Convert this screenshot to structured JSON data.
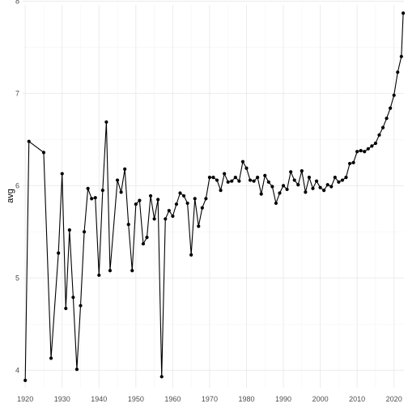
{
  "chart_data": {
    "type": "line",
    "title": "",
    "xlabel": "",
    "ylabel": "avg",
    "xlim": [
      1919.3,
      2022.7
    ],
    "ylim": [
      3.81,
      7.96
    ],
    "x_ticks": [
      1920,
      1930,
      1940,
      1950,
      1960,
      1970,
      1980,
      1990,
      2000,
      2010,
      2020
    ],
    "y_ticks": [
      4,
      5,
      6,
      7,
      8
    ],
    "grid": true,
    "legend": "none",
    "line_color": "#000000",
    "series": [
      {
        "points": [
          [
            1920,
            3.89
          ],
          [
            1921,
            6.48
          ],
          [
            1925,
            6.36
          ],
          [
            1927,
            4.13
          ],
          [
            1929,
            5.27
          ],
          [
            1930,
            6.13
          ],
          [
            1931,
            4.67
          ],
          [
            1932,
            5.52
          ],
          [
            1933,
            4.79
          ],
          [
            1934,
            4.01
          ],
          [
            1935,
            4.7
          ],
          [
            1936,
            5.5
          ],
          [
            1937,
            5.97
          ],
          [
            1938,
            5.86
          ],
          [
            1939,
            5.87
          ],
          [
            1940,
            5.03
          ],
          [
            1941,
            5.95
          ],
          [
            1942,
            6.69
          ],
          [
            1943,
            5.08
          ],
          [
            1945,
            6.06
          ],
          [
            1946,
            5.93
          ],
          [
            1947,
            6.18
          ],
          [
            1948,
            5.58
          ],
          [
            1949,
            5.08
          ],
          [
            1950,
            5.8
          ],
          [
            1951,
            5.84
          ],
          [
            1952,
            5.37
          ],
          [
            1953,
            5.44
          ],
          [
            1954,
            5.89
          ],
          [
            1955,
            5.64
          ],
          [
            1956,
            5.85
          ],
          [
            1957,
            3.93
          ],
          [
            1958,
            5.64
          ],
          [
            1959,
            5.73
          ],
          [
            1960,
            5.67
          ],
          [
            1961,
            5.8
          ],
          [
            1962,
            5.92
          ],
          [
            1963,
            5.89
          ],
          [
            1964,
            5.81
          ],
          [
            1965,
            5.25
          ],
          [
            1966,
            5.86
          ],
          [
            1967,
            5.56
          ],
          [
            1968,
            5.76
          ],
          [
            1969,
            5.86
          ],
          [
            1970,
            6.09
          ],
          [
            1971,
            6.09
          ],
          [
            1972,
            6.06
          ],
          [
            1973,
            5.95
          ],
          [
            1974,
            6.13
          ],
          [
            1975,
            6.04
          ],
          [
            1976,
            6.05
          ],
          [
            1977,
            6.09
          ],
          [
            1978,
            6.05
          ],
          [
            1979,
            6.26
          ],
          [
            1980,
            6.19
          ],
          [
            1981,
            6.06
          ],
          [
            1982,
            6.05
          ],
          [
            1983,
            6.09
          ],
          [
            1984,
            5.91
          ],
          [
            1985,
            6.11
          ],
          [
            1986,
            6.04
          ],
          [
            1987,
            5.99
          ],
          [
            1988,
            5.81
          ],
          [
            1989,
            5.92
          ],
          [
            1990,
            6.0
          ],
          [
            1991,
            5.96
          ],
          [
            1992,
            6.15
          ],
          [
            1993,
            6.06
          ],
          [
            1994,
            6.01
          ],
          [
            1995,
            6.16
          ],
          [
            1996,
            5.93
          ],
          [
            1997,
            6.09
          ],
          [
            1998,
            5.97
          ],
          [
            1999,
            6.05
          ],
          [
            2000,
            5.98
          ],
          [
            2001,
            5.95
          ],
          [
            2002,
            6.01
          ],
          [
            2003,
            5.99
          ],
          [
            2004,
            6.09
          ],
          [
            2005,
            6.04
          ],
          [
            2006,
            6.06
          ],
          [
            2007,
            6.09
          ],
          [
            2008,
            6.24
          ],
          [
            2009,
            6.25
          ],
          [
            2010,
            6.37
          ],
          [
            2011,
            6.38
          ],
          [
            2012,
            6.37
          ],
          [
            2013,
            6.4
          ],
          [
            2014,
            6.43
          ],
          [
            2015,
            6.46
          ],
          [
            2016,
            6.55
          ],
          [
            2017,
            6.63
          ],
          [
            2018,
            6.73
          ],
          [
            2019,
            6.84
          ],
          [
            2020,
            6.98
          ],
          [
            2021,
            7.23
          ],
          [
            2022,
            7.4
          ],
          [
            2022.5,
            7.87
          ]
        ]
      }
    ]
  }
}
